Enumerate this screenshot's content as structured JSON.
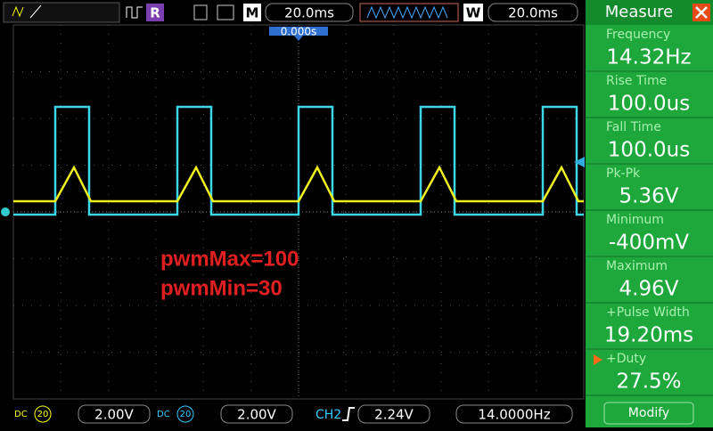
{
  "toolbar": {
    "mode": "M",
    "timebase": "20.0ms",
    "window_mode": "W",
    "window_timebase": "20.0ms",
    "run_mode": "R",
    "trigger_position": "0.000s"
  },
  "annotations": [
    "pwmMax=100",
    "pwmMin=30"
  ],
  "measure": {
    "title": "Measure",
    "items": [
      {
        "label": "Frequency",
        "value": "14.32Hz"
      },
      {
        "label": "Rise Time",
        "value": "100.0us"
      },
      {
        "label": "Fall Time",
        "value": "100.0us"
      },
      {
        "label": "Pk-Pk",
        "value": "5.36V"
      },
      {
        "label": "Minimum",
        "value": "-400mV"
      },
      {
        "label": "Maximum",
        "value": "4.96V"
      },
      {
        "label": "+Pulse Width",
        "value": "19.20ms"
      },
      {
        "label": "+Duty",
        "value": "27.5%"
      }
    ],
    "button": "Modify"
  },
  "status": {
    "ch1_probe": "20",
    "ch1_scale": "2.00V",
    "ch2_probe": "20",
    "ch2_scale": "2.00V",
    "trigger_source": "CH2",
    "trigger_level": "2.24V",
    "trigger_frequency": "14.0000Hz"
  }
}
